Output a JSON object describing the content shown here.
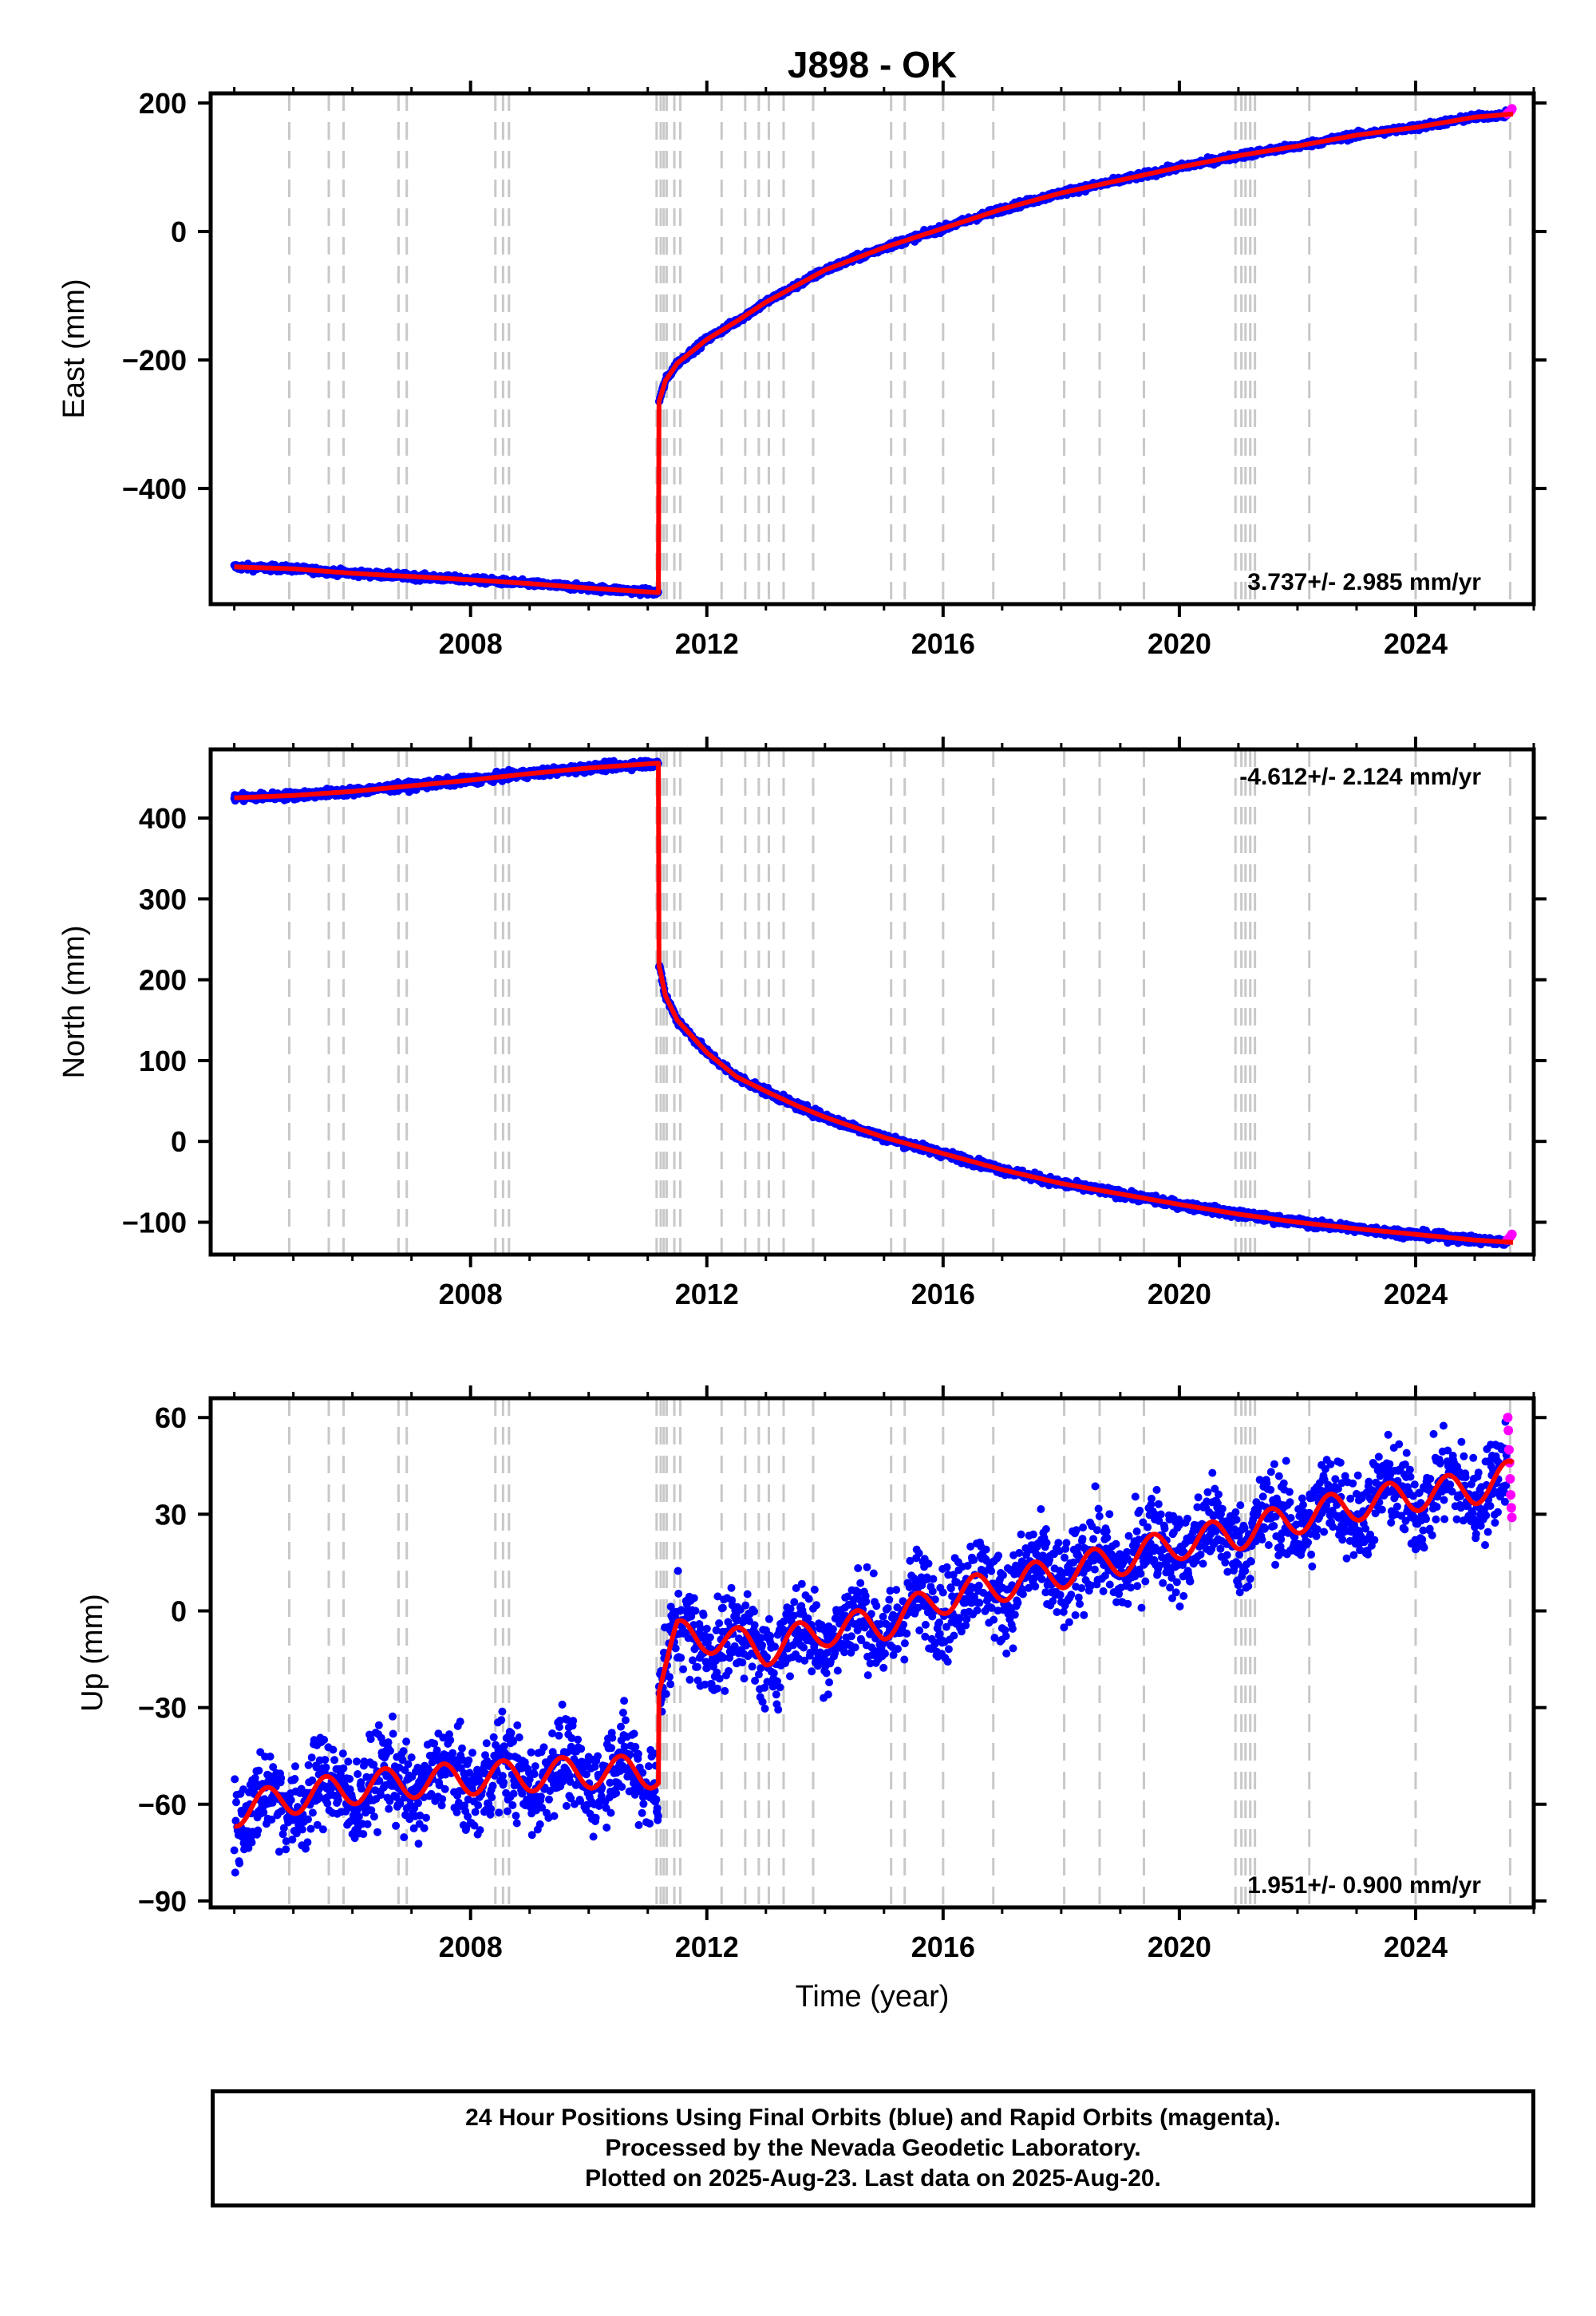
{
  "title": "J898 - OK",
  "xlabel": "Time (year)",
  "caption": [
    "24 Hour Positions Using Final Orbits (blue) and Rapid Orbits (magenta).",
    "Processed by the Nevada Geodetic Laboratory.",
    "Plotted on 2025-Aug-23. Last data on 2025-Aug-20."
  ],
  "colors": {
    "final": "#0000ff",
    "rapid": "#ff00ff",
    "model": "#ff0000",
    "event_lines": "#c8c8c8"
  },
  "chart_data": [
    {
      "type": "scatter",
      "component": "east",
      "ylabel": "East (mm)",
      "xlim": [
        2003.6,
        2026.0
      ],
      "ylim": [
        -580,
        215
      ],
      "x_ticks": [
        2008,
        2012,
        2016,
        2020,
        2024
      ],
      "y_ticks": [
        200,
        0,
        -200,
        -400
      ],
      "y_tick_labels": [
        "200",
        "0",
        "−200",
        "−400"
      ],
      "rate_text": "3.737+/- 2.985 mm/yr",
      "rate_position": "bottom-right",
      "noise_mm": 2.5,
      "model": [
        [
          2004.0,
          -522
        ],
        [
          2005.0,
          -525
        ],
        [
          2006.0,
          -532
        ],
        [
          2007.0,
          -537
        ],
        [
          2008.0,
          -542
        ],
        [
          2009.0,
          -548
        ],
        [
          2010.0,
          -555
        ],
        [
          2011.18,
          -562
        ],
        [
          2011.19,
          -265
        ],
        [
          2011.3,
          -232
        ],
        [
          2011.5,
          -205
        ],
        [
          2012.0,
          -168
        ],
        [
          2012.5,
          -140
        ],
        [
          2013.0,
          -110
        ],
        [
          2013.5,
          -85
        ],
        [
          2014.0,
          -60
        ],
        [
          2015.0,
          -25
        ],
        [
          2016.0,
          5
        ],
        [
          2017.0,
          35
        ],
        [
          2018.0,
          60
        ],
        [
          2019.0,
          80
        ],
        [
          2020.0,
          100
        ],
        [
          2021.0,
          118
        ],
        [
          2022.0,
          133
        ],
        [
          2023.0,
          150
        ],
        [
          2024.0,
          162
        ],
        [
          2025.0,
          178
        ],
        [
          2025.65,
          183
        ]
      ],
      "rapid": [
        [
          2025.55,
          183
        ],
        [
          2025.58,
          186
        ],
        [
          2025.61,
          188
        ],
        [
          2025.63,
          191
        ]
      ]
    },
    {
      "type": "scatter",
      "component": "north",
      "ylabel": "North (mm)",
      "xlim": [
        2003.6,
        2026.0
      ],
      "ylim": [
        -140,
        485
      ],
      "x_ticks": [
        2008,
        2012,
        2016,
        2020,
        2024
      ],
      "y_ticks": [
        400,
        300,
        200,
        100,
        0,
        -100
      ],
      "y_tick_labels": [
        "400",
        "300",
        "200",
        "100",
        "0",
        "−100"
      ],
      "rate_text": "-4.612+/- 2.124 mm/yr",
      "rate_position": "top-right",
      "noise_mm": 2.5,
      "model": [
        [
          2004.0,
          425
        ],
        [
          2005.0,
          428
        ],
        [
          2006.0,
          433
        ],
        [
          2007.0,
          440
        ],
        [
          2008.0,
          447
        ],
        [
          2009.0,
          455
        ],
        [
          2010.0,
          462
        ],
        [
          2011.18,
          468
        ],
        [
          2011.19,
          218
        ],
        [
          2011.3,
          180
        ],
        [
          2011.5,
          150
        ],
        [
          2012.0,
          110
        ],
        [
          2012.5,
          80
        ],
        [
          2013.0,
          62
        ],
        [
          2013.5,
          45
        ],
        [
          2014.0,
          30
        ],
        [
          2015.0,
          5
        ],
        [
          2016.0,
          -15
        ],
        [
          2017.0,
          -35
        ],
        [
          2018.0,
          -52
        ],
        [
          2019.0,
          -65
        ],
        [
          2020.0,
          -78
        ],
        [
          2021.0,
          -90
        ],
        [
          2022.0,
          -100
        ],
        [
          2023.0,
          -108
        ],
        [
          2024.0,
          -115
        ],
        [
          2025.0,
          -122
        ],
        [
          2025.65,
          -125
        ]
      ],
      "rapid": [
        [
          2025.55,
          -122
        ],
        [
          2025.58,
          -120
        ],
        [
          2025.61,
          -117
        ],
        [
          2025.63,
          -115
        ]
      ]
    },
    {
      "type": "scatter",
      "component": "up",
      "ylabel": "Up (mm)",
      "xlim": [
        2003.6,
        2026.0
      ],
      "ylim": [
        -92,
        66
      ],
      "x_ticks": [
        2008,
        2012,
        2016,
        2020,
        2024
      ],
      "y_ticks": [
        60,
        30,
        0,
        -30,
        -60,
        -90
      ],
      "y_tick_labels": [
        "60",
        "30",
        "0",
        "−30",
        "−60",
        "−90"
      ],
      "rate_text": "1.951+/- 0.900 mm/yr",
      "rate_position": "bottom-right",
      "noise_mm": 7,
      "seasonal_amplitude_mm": 5,
      "model": [
        [
          2004.0,
          -62
        ],
        [
          2005.0,
          -58
        ],
        [
          2006.0,
          -55
        ],
        [
          2007.0,
          -53
        ],
        [
          2008.0,
          -52
        ],
        [
          2009.0,
          -51
        ],
        [
          2010.0,
          -50
        ],
        [
          2011.18,
          -50
        ],
        [
          2011.19,
          -22
        ],
        [
          2011.5,
          -8
        ],
        [
          2012.0,
          -8
        ],
        [
          2013.0,
          -12
        ],
        [
          2014.0,
          -6
        ],
        [
          2015.0,
          -4
        ],
        [
          2016.0,
          4
        ],
        [
          2017.0,
          8
        ],
        [
          2018.0,
          12
        ],
        [
          2019.0,
          16
        ],
        [
          2020.0,
          21
        ],
        [
          2021.0,
          24
        ],
        [
          2022.0,
          29
        ],
        [
          2023.0,
          33
        ],
        [
          2024.0,
          36
        ],
        [
          2025.0,
          38
        ],
        [
          2025.65,
          42
        ]
      ],
      "rapid": [
        [
          2025.56,
          60
        ],
        [
          2025.57,
          56
        ],
        [
          2025.58,
          50
        ],
        [
          2025.59,
          46
        ],
        [
          2025.6,
          41
        ],
        [
          2025.61,
          36
        ],
        [
          2025.62,
          32
        ],
        [
          2025.63,
          29
        ]
      ]
    }
  ],
  "event_lines": [
    2004.93,
    2005.6,
    2005.85,
    2006.78,
    2006.92,
    2008.42,
    2008.55,
    2008.65,
    2011.15,
    2011.22,
    2011.27,
    2011.32,
    2011.45,
    2011.55,
    2012.25,
    2012.65,
    2012.88,
    2013.05,
    2013.3,
    2013.8,
    2015.12,
    2015.35,
    2016.0,
    2016.85,
    2018.05,
    2018.65,
    2019.4,
    2020.95,
    2021.05,
    2021.12,
    2021.2,
    2021.28,
    2022.2,
    2024.0,
    2025.6
  ]
}
